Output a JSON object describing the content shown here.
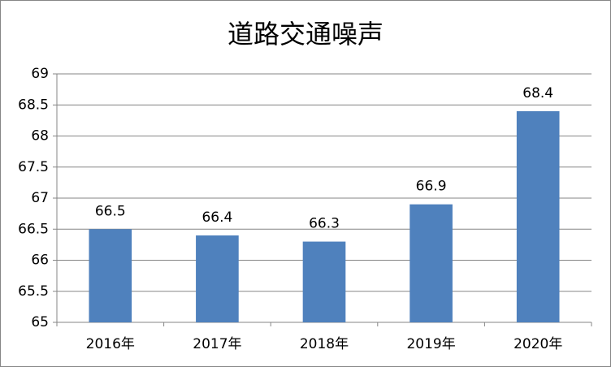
{
  "chart_data": {
    "type": "bar",
    "title": "道路交通噪声",
    "categories": [
      "2016年",
      "2017年",
      "2018年",
      "2019年",
      "2020年"
    ],
    "values": [
      66.5,
      66.4,
      66.3,
      66.9,
      68.4
    ],
    "color": "#4f81bd",
    "ylim": [
      65,
      69
    ],
    "yticks": [
      65,
      65.5,
      66,
      66.5,
      67,
      67.5,
      68,
      68.5,
      69
    ],
    "grid": true
  }
}
